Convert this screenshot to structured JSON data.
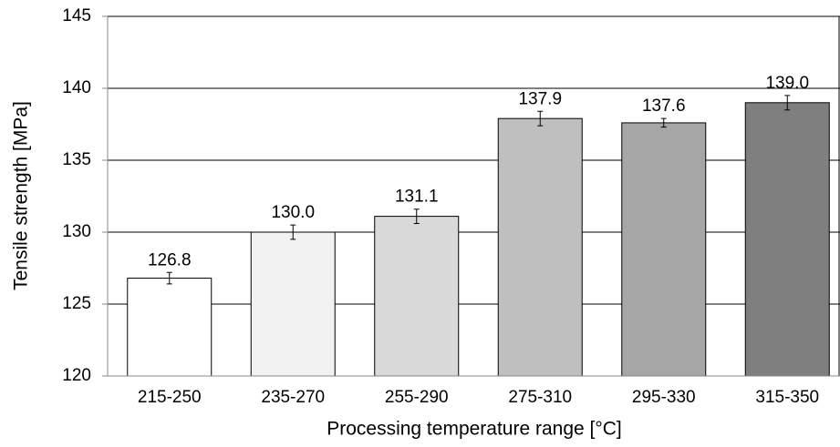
{
  "chart_data": {
    "type": "bar",
    "y_label": "Tensile strength [MPa]",
    "x_label": "Processing temperature range [°C]",
    "categories": [
      "215-250",
      "235-270",
      "255-290",
      "275-310",
      "295-330",
      "315-350"
    ],
    "values": [
      126.8,
      130.0,
      131.1,
      137.9,
      137.6,
      139.0
    ],
    "value_labels": [
      "126.8",
      "130.0",
      "131.1",
      "137.9",
      "137.6",
      "139.0"
    ],
    "errors": [
      0.4,
      0.5,
      0.5,
      0.5,
      0.3,
      0.5
    ],
    "colors": [
      "#ffffff",
      "#f2f2f2",
      "#d9d9d9",
      "#bfbfbf",
      "#a6a6a6",
      "#7f7f7f"
    ],
    "ylim": [
      120,
      145
    ],
    "yticks": [
      120,
      125,
      130,
      135,
      140,
      145
    ],
    "grid": true
  }
}
